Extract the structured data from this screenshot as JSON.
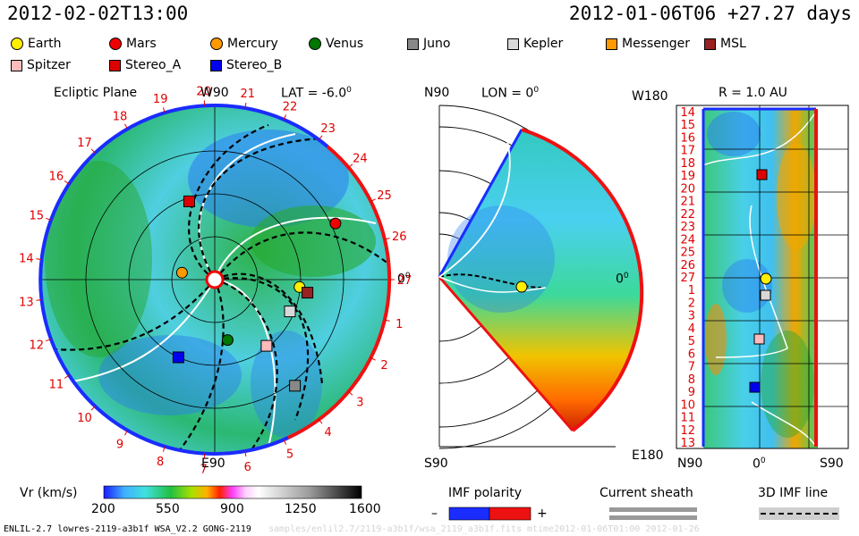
{
  "header": {
    "left_datetime": "2012-02-02T13:00",
    "right_datetime": "2012-01-06T06 +27.27 days"
  },
  "legend": [
    {
      "name": "Earth",
      "shape": "circle",
      "color": "#ffee00"
    },
    {
      "name": "Mars",
      "shape": "circle",
      "color": "#ee0000"
    },
    {
      "name": "Mercury",
      "shape": "circle",
      "color": "#ff9900"
    },
    {
      "name": "Venus",
      "shape": "circle",
      "color": "#007700"
    },
    {
      "name": "Juno",
      "shape": "square",
      "color": "#888888"
    },
    {
      "name": "Kepler",
      "shape": "square",
      "color": "#d8d8d8"
    },
    {
      "name": "Messenger",
      "shape": "square",
      "color": "#ff9900"
    },
    {
      "name": "MSL",
      "shape": "square",
      "color": "#992222"
    },
    {
      "name": "Spitzer",
      "shape": "square",
      "color": "#ffbbbb"
    },
    {
      "name": "Stereo_A",
      "shape": "square",
      "color": "#dd0000"
    },
    {
      "name": "Stereo_B",
      "shape": "square",
      "color": "#0000ee"
    }
  ],
  "ecliptic": {
    "title": "Ecliptic Plane",
    "top_label": "W90",
    "lat_label": "LAT = -6.0",
    "deg": "0",
    "right_label": "0",
    "bottom_label": "E90"
  },
  "meridional": {
    "top_label": "N90",
    "lon_label": "LON = 0",
    "deg": "0",
    "right_label": "0",
    "bottom_label": "S90"
  },
  "radial": {
    "title": "R = 1.0 AU",
    "top_left_label": "W180",
    "bottom_left_label": "E180",
    "x_left": "N90",
    "x_mid": "0",
    "x_right": "S90",
    "deg": "0"
  },
  "colorbar": {
    "label": "Vr (km/s)",
    "ticks": [
      "200",
      "550",
      "900",
      "1250",
      "1600"
    ]
  },
  "imf_polarity": {
    "label": "IMF polarity",
    "minus": "–",
    "plus": "+"
  },
  "current_sheath": {
    "label": "Current sheath"
  },
  "imf_line": {
    "label": "3D IMF line"
  },
  "footer": {
    "left": "ENLIL-2.7 lowres-2119-a3b1f WSA_V2.2 GONG-2119",
    "right": "samples/enlil2.7/2119-a3b1f/wsa_2119_a3b1f.fits mtime2012-01-06T01:00 2012-01-26"
  },
  "chart_data": {
    "type": "heatmap",
    "quantity": "Vr (km/s)",
    "color_range": [
      200,
      1600
    ],
    "carrington_rotation_ticks": [
      "1",
      "2",
      "3",
      "4",
      "5",
      "6",
      "7",
      "8",
      "9",
      "10",
      "11",
      "12",
      "13",
      "14",
      "15",
      "16",
      "17",
      "18",
      "19",
      "20",
      "21",
      "22",
      "23",
      "24",
      "25",
      "26",
      "27"
    ],
    "radial_y_ticks": [
      "14",
      "15",
      "16",
      "17",
      "18",
      "19",
      "20",
      "21",
      "22",
      "23",
      "24",
      "25",
      "26",
      "27",
      "1",
      "2",
      "3",
      "4",
      "5",
      "6",
      "7",
      "8",
      "9",
      "10",
      "11",
      "12",
      "13"
    ],
    "bodies_ecliptic": [
      {
        "name": "Earth",
        "type": "circle",
        "lon_deg": -5,
        "r_au": 0.99
      },
      {
        "name": "Mars",
        "type": "circle",
        "lon_deg": 25,
        "r_au": 1.55
      },
      {
        "name": "Mercury",
        "type": "circle",
        "lon_deg": 168,
        "r_au": 0.39
      },
      {
        "name": "Venus",
        "type": "circle",
        "lon_deg": -78,
        "r_au": 0.72
      },
      {
        "name": "Stereo_A",
        "type": "square",
        "lon_deg": 108,
        "r_au": 0.96
      },
      {
        "name": "Stereo_B",
        "type": "square",
        "lon_deg": -115,
        "r_au": 1.0
      },
      {
        "name": "MSL",
        "type": "square",
        "lon_deg": -8,
        "r_au": 1.09
      },
      {
        "name": "Kepler",
        "type": "square",
        "lon_deg": -23,
        "r_au": 0.95
      },
      {
        "name": "Spitzer",
        "type": "square",
        "lon_deg": -52,
        "r_au": 0.98
      },
      {
        "name": "Juno",
        "type": "square",
        "lon_deg": -53,
        "r_au": 1.55
      }
    ]
  }
}
